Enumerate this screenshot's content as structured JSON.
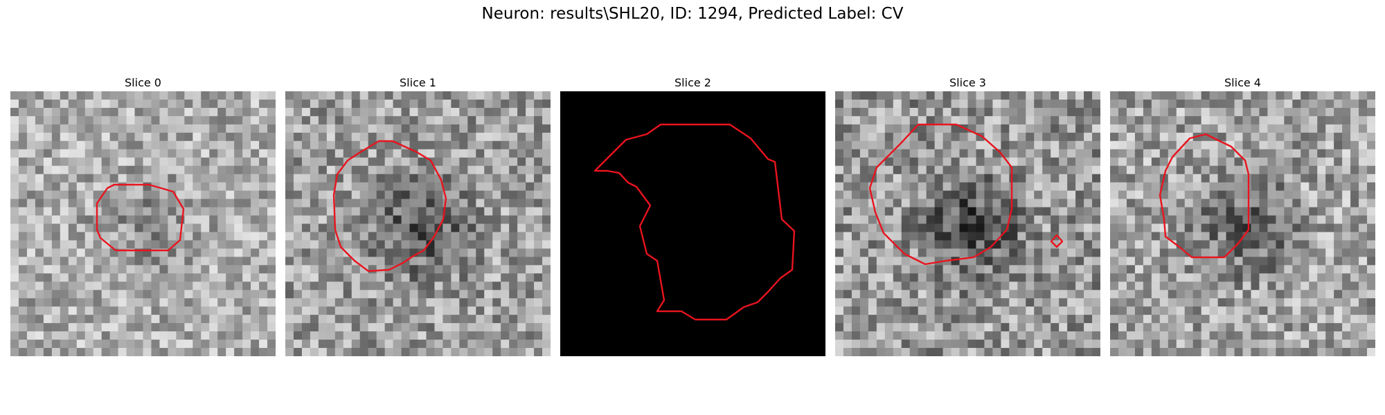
{
  "figure": {
    "title": "Neuron: results\\SHL20, ID: 1294, Predicted Label: CV"
  },
  "contour_color": "#e8141e",
  "panels": [
    {
      "label": "Slice 0",
      "image": "grayscale-noise-patch"
    },
    {
      "label": "Slice 1",
      "image": "grayscale-noise-patch"
    },
    {
      "label": "Slice 2",
      "image": "black-patch"
    },
    {
      "label": "Slice 3",
      "image": "grayscale-noise-patch"
    },
    {
      "label": "Slice 4",
      "image": "grayscale-noise-patch"
    }
  ]
}
